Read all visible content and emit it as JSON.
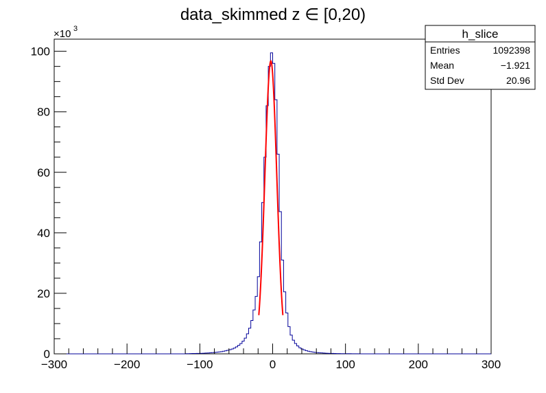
{
  "chart_data": {
    "type": "histogram",
    "title": "data_skimmed z  ∈ [0,20)",
    "xlabel": "",
    "ylabel": "",
    "xlim": [
      -300,
      300
    ],
    "ylim": [
      0,
      104000
    ],
    "y_multiplier_label": "×10",
    "y_multiplier_exponent": "3",
    "x_ticks": [
      "−300",
      "−200",
      "−100",
      "0",
      "100",
      "200",
      "300"
    ],
    "y_ticks": [
      "0",
      "20",
      "40",
      "60",
      "80",
      "100"
    ],
    "bin_width": 3,
    "hist_color": "#000099",
    "fit_color": "#ff0000",
    "grid": false,
    "legend": "none",
    "fit": {
      "function": "gaus",
      "amplitude": 96800,
      "mean": -2.5,
      "sigma": 8.2,
      "range": [
        -19,
        14
      ]
    },
    "stats_box": {
      "name": "h_slice",
      "placement": "top-right",
      "rows": [
        {
          "label": "Entries",
          "value": "1092398"
        },
        {
          "label": "Mean",
          "value": "−1.921"
        },
        {
          "label": "Std Dev",
          "value": "20.96"
        }
      ]
    },
    "series": [
      {
        "x": [
          -120,
          -117,
          -114,
          -111,
          -108,
          -105,
          -102,
          -99,
          -96,
          -93,
          -90,
          -87,
          -84,
          -81,
          -78,
          -75,
          -72,
          -69,
          -66,
          -63,
          -60,
          -57,
          -54,
          -51,
          -48,
          -45,
          -42,
          -39,
          -36,
          -33,
          -30,
          -27,
          -24,
          -21,
          -18,
          -15,
          -12,
          -9,
          -6,
          -3,
          0,
          3,
          6,
          9,
          12,
          15,
          18,
          21,
          24,
          27,
          30,
          33,
          36,
          39,
          42,
          45,
          48,
          51,
          54,
          57,
          60,
          63,
          66,
          69,
          72,
          75,
          78,
          81,
          84,
          87,
          90,
          93,
          96,
          99,
          102,
          105,
          108,
          111,
          114,
          117
        ],
        "values": [
          60,
          70,
          80,
          100,
          110,
          130,
          150,
          180,
          210,
          250,
          290,
          340,
          400,
          460,
          540,
          620,
          720,
          840,
          980,
          1150,
          1350,
          1600,
          1900,
          2300,
          2800,
          3400,
          4200,
          5200,
          6600,
          8500,
          11000,
          14500,
          19000,
          25500,
          37000,
          50000,
          65000,
          82000,
          95000,
          99500,
          96000,
          84000,
          66000,
          47000,
          31000,
          20500,
          13500,
          9000,
          6200,
          4500,
          3400,
          2600,
          2000,
          1600,
          1300,
          1050,
          860,
          710,
          590,
          490,
          410,
          350,
          300,
          250,
          210,
          180,
          150,
          130,
          110,
          95,
          80,
          70,
          60,
          55,
          50,
          45,
          40,
          35,
          30,
          25
        ]
      }
    ]
  }
}
